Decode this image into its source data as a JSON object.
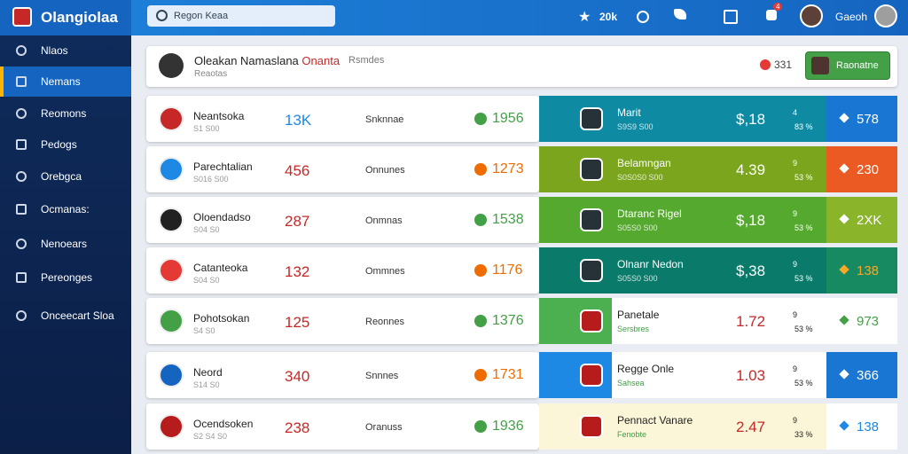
{
  "app": {
    "logo": "Olangiolaa",
    "search": "Regon Keaa",
    "stars": "20k",
    "notifications": "4",
    "user": "Gaeoh"
  },
  "sidebar": [
    "Nlaos",
    "Nemans",
    "Reomons",
    "Pedogs",
    "Orebgca",
    "Ocmanas:",
    "Nenoears",
    "Pereonges",
    "Onceecart Sloa"
  ],
  "header": {
    "title": "Oleakan Namaslana",
    "title_accent": "Onanta",
    "tag": "Rsmdes",
    "subtitle": "Reaotas",
    "count": "331",
    "button": "Raonatne"
  },
  "rows": [
    {
      "name": "Neantsoka",
      "sub": "S1 S00",
      "stat": "13K",
      "label": "Snknnae",
      "score": "1956"
    },
    {
      "name": "Parechtalian",
      "sub": "S016 S00",
      "stat": "456",
      "label": "Onnunes",
      "score": "1273"
    },
    {
      "name": "Oloendadso",
      "sub": "S04 S0",
      "stat": "287",
      "label": "Onmnas",
      "score": "1538"
    },
    {
      "name": "Catanteoka",
      "sub": "S04 S0",
      "stat": "132",
      "label": "Ommnes",
      "score": "1176"
    },
    {
      "name": "Pohotsokan",
      "sub": "S4 S0",
      "stat": "125",
      "label": "Reonnes",
      "score": "1376"
    },
    {
      "name": "Neord",
      "sub": "S14 S0",
      "stat": "340",
      "label": "Snnnes",
      "score": "1731"
    },
    {
      "name": "Ocendsoken",
      "sub": "S2 S4 S0",
      "stat": "238",
      "label": "Oranuss",
      "score": "1936"
    }
  ],
  "markets": [
    {
      "name": "Marit",
      "sub": "S9S9 S00",
      "price": "$,18",
      "n": "4",
      "pct": "83 %",
      "value": "578"
    },
    {
      "name": "Belamngan",
      "sub": "S0S0S0 S00",
      "price": "4.39",
      "n": "9",
      "pct": "53 %",
      "value": "230"
    },
    {
      "name": "Dtaranc Rigel",
      "sub": "S05S0 S00",
      "price": "$,18",
      "n": "9",
      "pct": "53 %",
      "value": "2XK"
    },
    {
      "name": "Olnanr Nedon",
      "sub": "S05S0 S00",
      "price": "$,38",
      "n": "9",
      "pct": "53 %",
      "value": "138"
    },
    {
      "name": "Panetale",
      "sub": "Sersbres",
      "price": "1.72",
      "n": "9",
      "pct": "53 %",
      "value": "973"
    },
    {
      "name": "Regge Onle",
      "sub": "Sahsea",
      "price": "1.03",
      "n": "9",
      "pct": "53 %",
      "value": "366"
    },
    {
      "name": "Pennact Vanare",
      "sub": "Fenobte",
      "price": "2.47",
      "n": "9",
      "pct": "33 %",
      "value": "138"
    }
  ]
}
